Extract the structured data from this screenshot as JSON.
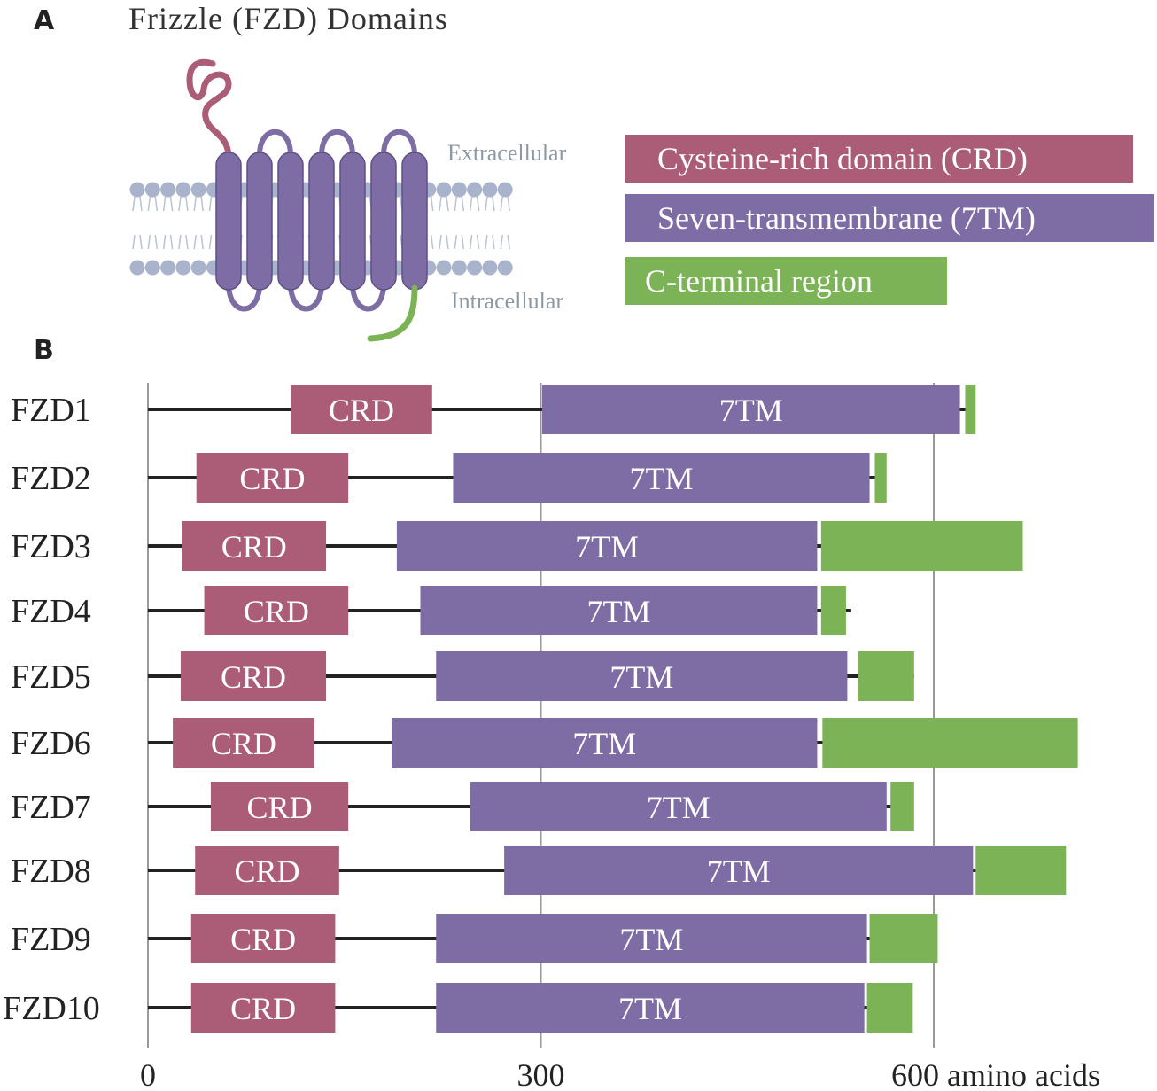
{
  "panel_a": {
    "letter": "A",
    "title": "Frizzle (FZD) Domains",
    "extracellular_label": "Extracellular",
    "intracellular_label": "Intracellular",
    "legend": [
      {
        "label": "Cysteine-rich domain (CRD)",
        "color": "#ab5c76"
      },
      {
        "label": "Seven-transmembrane (7TM)",
        "color": "#7e6ca4"
      },
      {
        "label": "C-terminal region",
        "color": "#7cb357"
      }
    ]
  },
  "panel_b": {
    "letter": "B",
    "crd_label": "CRD",
    "tm_label": "7TM",
    "axis": {
      "ticks": [
        {
          "value": 0,
          "label": "0"
        },
        {
          "value": 300,
          "label": "300"
        },
        {
          "value": 600,
          "label": "600 amino acids"
        }
      ],
      "range": [
        0,
        700
      ]
    },
    "colors": {
      "crd": "#ab5c76",
      "tm": "#7e6ca4",
      "cterm": "#7cb357",
      "line": "#222222",
      "grid": "#999999"
    },
    "proteins": [
      {
        "name": "FZD1",
        "length": 627,
        "crd": [
          109,
          217
        ],
        "tm": [
          301,
          620
        ],
        "cterm": [
          624,
          632
        ]
      },
      {
        "name": "FZD2",
        "length": 561,
        "crd": [
          37,
          153
        ],
        "tm": [
          233,
          551
        ],
        "cterm": [
          555,
          564
        ]
      },
      {
        "name": "FZD3",
        "length": 666,
        "crd": [
          26,
          136
        ],
        "tm": [
          190,
          511
        ],
        "cterm": [
          514,
          668
        ]
      },
      {
        "name": "FZD4",
        "length": 537,
        "crd": [
          43,
          153
        ],
        "tm": [
          208,
          511
        ],
        "cterm": [
          514,
          533
        ]
      },
      {
        "name": "FZD5",
        "length": 585,
        "crd": [
          25,
          136
        ],
        "tm": [
          220,
          534
        ],
        "cterm": [
          542,
          585
        ]
      },
      {
        "name": "FZD6",
        "length": 706,
        "crd": [
          19,
          127
        ],
        "tm": [
          186,
          511
        ],
        "cterm": [
          515,
          710
        ]
      },
      {
        "name": "FZD7",
        "length": 574,
        "crd": [
          48,
          153
        ],
        "tm": [
          246,
          564
        ],
        "cterm": [
          567,
          585
        ]
      },
      {
        "name": "FZD8",
        "length": 694,
        "crd": [
          36,
          146
        ],
        "tm": [
          272,
          630
        ],
        "cterm": [
          632,
          701
        ]
      },
      {
        "name": "FZD9",
        "length": 591,
        "crd": [
          33,
          143
        ],
        "tm": [
          220,
          549
        ],
        "cterm": [
          551,
          603
        ]
      },
      {
        "name": "FZD10",
        "length": 581,
        "crd": [
          33,
          143
        ],
        "tm": [
          220,
          547
        ],
        "cterm": [
          549,
          584
        ]
      }
    ]
  }
}
